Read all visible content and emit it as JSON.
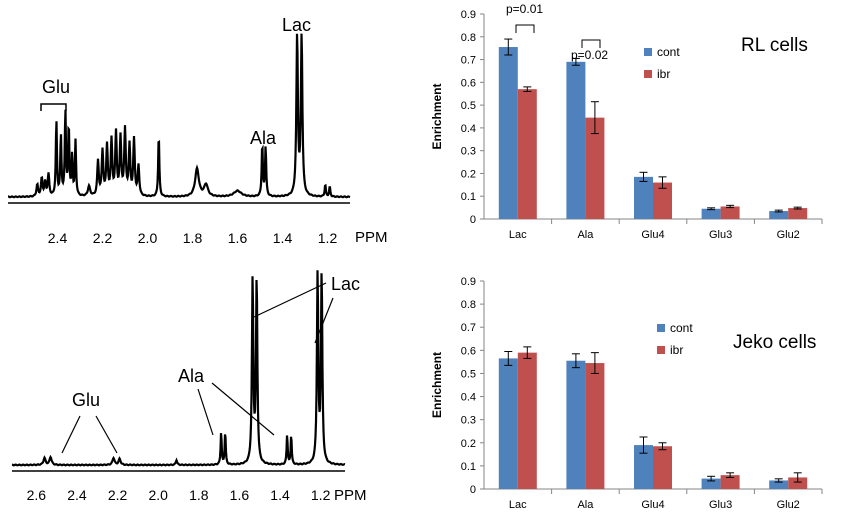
{
  "chart_data": [
    {
      "type": "line",
      "title": "",
      "description_text": "NMR spectrum",
      "peak_labels": [
        "Glu",
        "Ala",
        "Lac"
      ],
      "x_ticks": [
        "2.4",
        "2.2",
        "2.0",
        "1.8",
        "1.6",
        "1.4",
        "1.2"
      ],
      "xlabel": "PPM",
      "xlim": [
        2.62,
        1.1
      ]
    },
    {
      "type": "bar",
      "title": "RL cells",
      "ylabel": "Enrichment",
      "ylim": [
        0,
        0.9
      ],
      "y_ticks": [
        "0",
        "0.1",
        "0.2",
        "0.3",
        "0.4",
        "0.5",
        "0.6",
        "0.7",
        "0.8",
        "0.9"
      ],
      "categories": [
        "Lac",
        "Ala",
        "Glu4",
        "Glu3",
        "Glu2"
      ],
      "series": [
        {
          "name": "cont",
          "color": "#4f81bd",
          "values": [
            0.755,
            0.69,
            0.185,
            0.045,
            0.035
          ],
          "errors": [
            0.035,
            0.015,
            0.02,
            0.004,
            0.004
          ]
        },
        {
          "name": "ibr",
          "color": "#c0504d",
          "values": [
            0.57,
            0.445,
            0.16,
            0.055,
            0.048
          ],
          "errors": [
            0.01,
            0.07,
            0.025,
            0.005,
            0.004
          ]
        }
      ],
      "annotations": [
        "p=0.01",
        "p=0.02"
      ]
    },
    {
      "type": "line",
      "title": "",
      "peak_labels": [
        "Glu",
        "Ala",
        "Lac"
      ],
      "x_ticks": [
        "2.6",
        "2.4",
        "2.2",
        "2.0",
        "1.8",
        "1.6",
        "1.4",
        "1.2"
      ],
      "xlabel": "PPM",
      "xlim": [
        2.72,
        1.08
      ]
    },
    {
      "type": "bar",
      "title": "Jeko cells",
      "ylabel": "Enrichment",
      "ylim": [
        0,
        0.9
      ],
      "y_ticks": [
        "0",
        "0.1",
        "0.2",
        "0.3",
        "0.4",
        "0.5",
        "0.6",
        "0.7",
        "0.8",
        "0.9"
      ],
      "categories": [
        "Lac",
        "Ala",
        "Glu4",
        "Glu3",
        "Glu2"
      ],
      "series": [
        {
          "name": "cont",
          "color": "#4f81bd",
          "values": [
            0.565,
            0.555,
            0.19,
            0.045,
            0.037
          ],
          "errors": [
            0.03,
            0.03,
            0.035,
            0.01,
            0.007
          ]
        },
        {
          "name": "ibr",
          "color": "#c0504d",
          "values": [
            0.59,
            0.545,
            0.185,
            0.06,
            0.05
          ],
          "errors": [
            0.025,
            0.045,
            0.015,
            0.01,
            0.02
          ]
        }
      ],
      "annotations": []
    }
  ]
}
